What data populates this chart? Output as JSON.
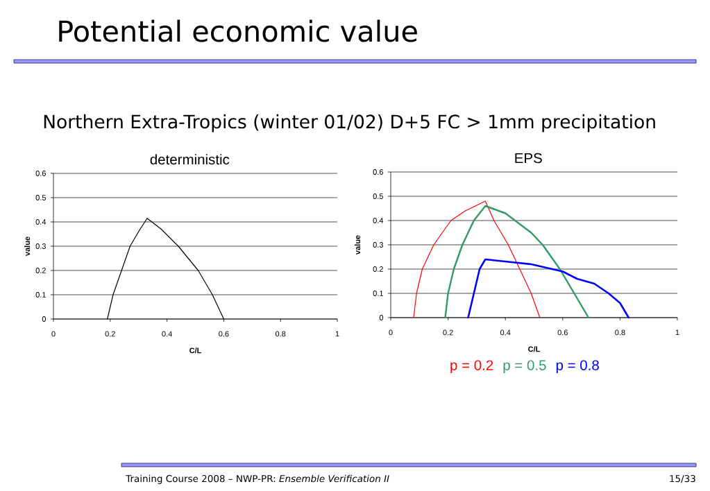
{
  "chart_data": [
    {
      "type": "other",
      "title": "Potential economic value",
      "subtitle": "Northern Extra-Tropics (winter 01/02) D+5 FC > 1mm precipitation",
      "annotations": [
        "Training Course 2008 – NWP-PR: *Ensemble Verification II*",
        "15/33"
      ]
    },
    {
      "type": "line",
      "title": "deterministic",
      "xlabel": "C/L",
      "ylabel": "value",
      "xlim": [
        0,
        1
      ],
      "ylim": [
        0,
        0.6
      ],
      "xticks": [
        0,
        0.2,
        0.4,
        0.6,
        0.8,
        1
      ],
      "yticks": [
        0,
        0.1,
        0.2,
        0.3,
        0.4,
        0.5,
        0.6
      ],
      "grid": "y",
      "series": [
        {
          "color": "#000000",
          "x": [
            0.19,
            0.21,
            0.24,
            0.27,
            0.3,
            0.33,
            0.38,
            0.44,
            0.51,
            0.56,
            0.6
          ],
          "values": [
            0,
            0.1,
            0.2,
            0.3,
            0.36,
            0.415,
            0.37,
            0.3,
            0.2,
            0.1,
            0
          ]
        }
      ]
    },
    {
      "type": "line",
      "title": "EPS",
      "xlabel": "C/L",
      "ylabel": "value",
      "xlim": [
        0,
        1
      ],
      "ylim": [
        0,
        0.6
      ],
      "xticks": [
        0,
        0.2,
        0.4,
        0.6,
        0.8,
        1
      ],
      "yticks": [
        0,
        0.1,
        0.2,
        0.3,
        0.4,
        0.5,
        0.6
      ],
      "grid": "y",
      "legend": "bottom",
      "series": [
        {
          "name": "p = 0.2",
          "color": "#ff0000",
          "x": [
            0.08,
            0.09,
            0.11,
            0.15,
            0.21,
            0.26,
            0.33,
            0.36,
            0.41,
            0.45,
            0.49,
            0.52
          ],
          "values": [
            0,
            0.1,
            0.2,
            0.3,
            0.4,
            0.44,
            0.48,
            0.4,
            0.3,
            0.2,
            0.1,
            0
          ]
        },
        {
          "name": "p = 0.5",
          "color": "#339966",
          "x": [
            0.19,
            0.2,
            0.22,
            0.25,
            0.29,
            0.33,
            0.4,
            0.49,
            0.53,
            0.59,
            0.64,
            0.69
          ],
          "values": [
            0,
            0.1,
            0.2,
            0.3,
            0.4,
            0.46,
            0.43,
            0.35,
            0.3,
            0.2,
            0.1,
            0
          ]
        },
        {
          "name": "p = 0.8",
          "color": "#0000ff",
          "x": [
            0.27,
            0.29,
            0.31,
            0.33,
            0.41,
            0.49,
            0.6,
            0.65,
            0.71,
            0.76,
            0.8,
            0.83
          ],
          "values": [
            0,
            0.1,
            0.2,
            0.24,
            0.23,
            0.22,
            0.19,
            0.16,
            0.14,
            0.1,
            0.06,
            0
          ]
        }
      ]
    }
  ]
}
